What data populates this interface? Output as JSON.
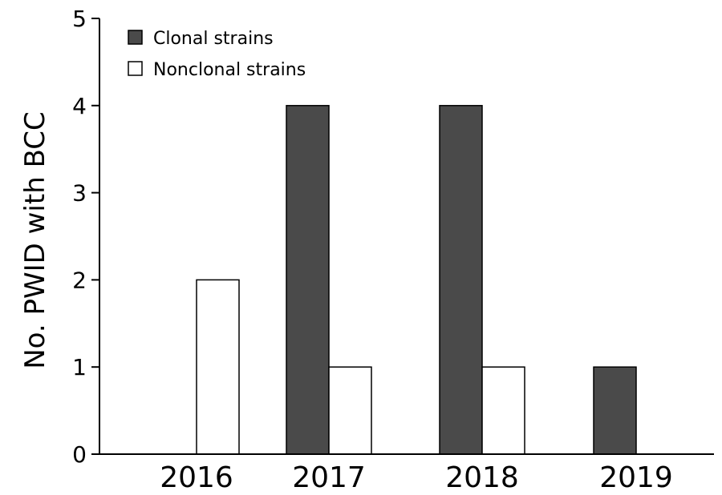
{
  "chart_data": {
    "type": "bar",
    "title": "",
    "xlabel": "",
    "ylabel": "No. PWID with BCC",
    "categories": [
      "2016",
      "2017",
      "2018",
      "2019"
    ],
    "ylim": [
      0,
      5
    ],
    "yticks": [
      "0",
      "1",
      "2",
      "3",
      "4",
      "5"
    ],
    "grid": false,
    "legend_position": "top-left",
    "series": [
      {
        "name": "Clonal strains",
        "values": [
          0,
          4,
          4,
          1
        ],
        "color": "#4a4a4a"
      },
      {
        "name": "Nonclonal strains",
        "values": [
          2,
          1,
          1,
          0
        ],
        "color": "#ffffff"
      }
    ]
  }
}
